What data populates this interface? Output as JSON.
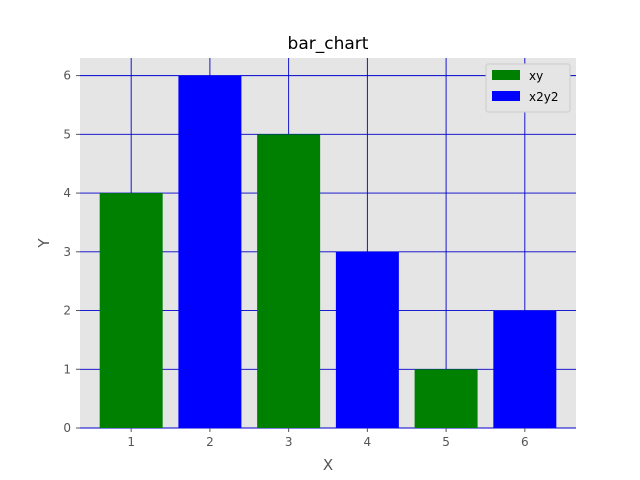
{
  "chart_data": {
    "type": "bar",
    "title": "bar_chart",
    "xlabel": "X",
    "ylabel": "Y",
    "x": [
      1,
      2,
      3,
      4,
      5,
      6
    ],
    "xlim": [
      0.35,
      6.65
    ],
    "ylim": [
      0,
      6.3
    ],
    "yticks": [
      0,
      1,
      2,
      3,
      4,
      5,
      6
    ],
    "grid": true,
    "legend_position": "top-right",
    "series": [
      {
        "name": "xy",
        "color": "#008000",
        "points": [
          [
            1,
            4
          ],
          [
            3,
            5
          ],
          [
            5,
            1
          ]
        ]
      },
      {
        "name": "x2y2",
        "color": "#0000ff",
        "points": [
          [
            2,
            6
          ],
          [
            4,
            3
          ],
          [
            6,
            2
          ]
        ]
      }
    ],
    "colors": {
      "background": "#e5e5e5",
      "grid": "#0000cc"
    }
  }
}
